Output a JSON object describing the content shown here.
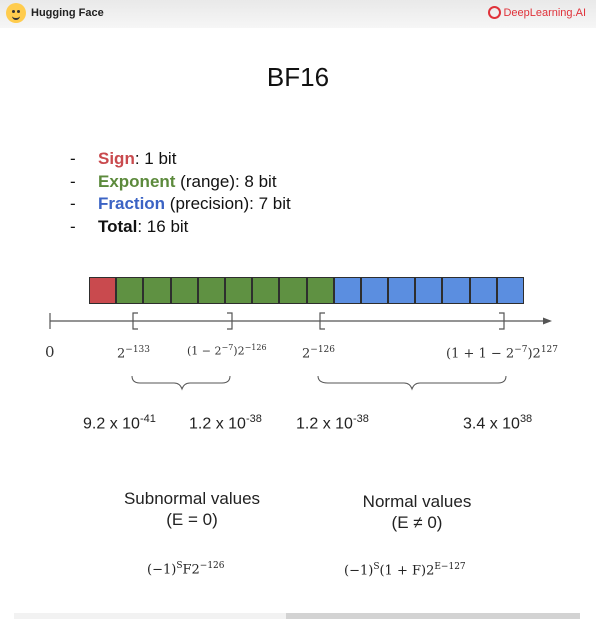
{
  "brand": {
    "left": "Hugging Face",
    "right": "DeepLearning.AI"
  },
  "title": "BF16",
  "bullets": [
    {
      "dash": "-",
      "label": "Sign",
      "rest": ": 1 bit"
    },
    {
      "dash": "-",
      "label": "Exponent",
      "rest": " (range): 8 bit"
    },
    {
      "dash": "-",
      "label": "Fraction",
      "rest": " (precision): 7 bit"
    },
    {
      "dash": "-",
      "label": "Total",
      "rest": ": 16 bit"
    }
  ],
  "bits": {
    "sign": 1,
    "exponent": 8,
    "fraction": 7
  },
  "colors": {
    "sign": "#c94a4e",
    "exponent": "#5f9142",
    "fraction": "#5b8ee0"
  },
  "axis": {
    "zero": "0",
    "labels": {
      "sub_min_base": "2",
      "sub_min_exp": "−133",
      "sub_max_base": "(1 − 2",
      "sub_max_inner_exp": "−7",
      "sub_max_mid": ")2",
      "sub_max_exp": "−126",
      "norm_min_base": "2",
      "norm_min_exp": "−126",
      "norm_max_base": "(1 + 1 − 2",
      "norm_max_inner_exp": "−7",
      "norm_max_mid": ")2",
      "norm_max_exp": "127"
    }
  },
  "decimals": [
    {
      "mantissa": "9.2 x 10",
      "exp": "-41"
    },
    {
      "mantissa": "1.2 x 10",
      "exp": "-38"
    },
    {
      "mantissa": "1.2 x 10",
      "exp": "-38"
    },
    {
      "mantissa": "3.4 x 10",
      "exp": "38"
    }
  ],
  "subnormal": {
    "caption": "Subnormal values",
    "condition": "(E = 0)",
    "formula": {
      "a": "(−1)",
      "a_exp": "S",
      "b": "F2",
      "b_exp": "−126"
    }
  },
  "normal": {
    "caption": "Normal values",
    "condition": "(E ≠ 0)",
    "formula": {
      "a": "(−1)",
      "a_exp": "S",
      "b": "(1 + F)2",
      "b_exp": "E−127"
    }
  },
  "progress": {
    "fraction": 0.48
  }
}
